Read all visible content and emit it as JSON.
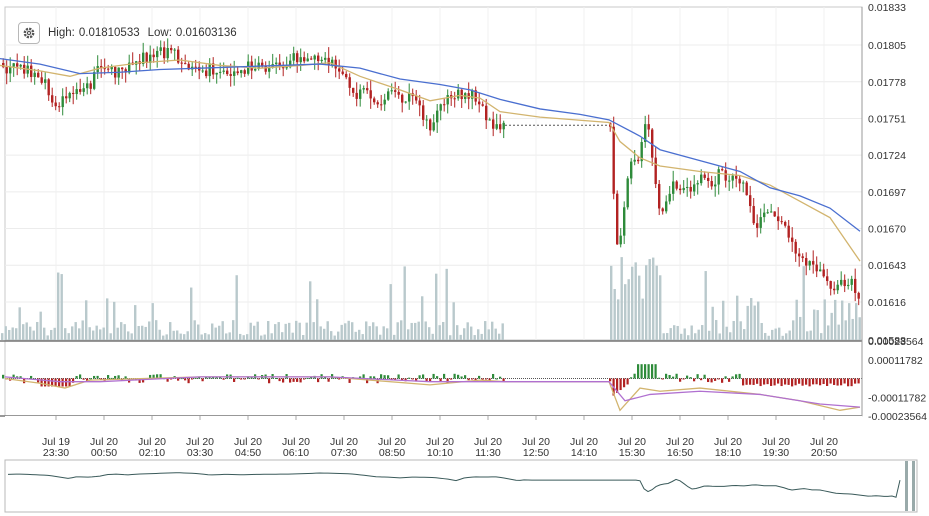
{
  "toolbar": {
    "settings_icon": "gear-icon",
    "high_label": "High:",
    "high_value": "0.01810533",
    "low_label": "Low:",
    "low_value": "0.01603136"
  },
  "colors": {
    "up": "#2e8b3a",
    "down": "#b22222",
    "ma_fast": "#d2b46e",
    "ma_slow": "#4a6fd0",
    "volume": "#b9c9cc",
    "macd_line": "#d2b46e",
    "signal_line": "#b070d0",
    "navigator": "#3a5a5a"
  },
  "chart_data": [
    {
      "type": "candlestick",
      "y_ticks": [
        "0.01833",
        "0.01805",
        "0.01778",
        "0.01751",
        "0.01724",
        "0.01697",
        "0.01670",
        "0.01643",
        "0.01616",
        "0.01588"
      ],
      "ylim": [
        0.01588,
        0.01833
      ],
      "x_ticks": [
        {
          "date": "Jul 19",
          "time": "23:30"
        },
        {
          "date": "Jul 20",
          "time": "00:50"
        },
        {
          "date": "Jul 20",
          "time": "02:10"
        },
        {
          "date": "Jul 20",
          "time": "03:30"
        },
        {
          "date": "Jul 20",
          "time": "04:50"
        },
        {
          "date": "Jul 20",
          "time": "06:10"
        },
        {
          "date": "Jul 20",
          "time": "07:30"
        },
        {
          "date": "Jul 20",
          "time": "08:50"
        },
        {
          "date": "Jul 20",
          "time": "10:10"
        },
        {
          "date": "Jul 20",
          "time": "11:30"
        },
        {
          "date": "Jul 20",
          "time": "12:50"
        },
        {
          "date": "Jul 20",
          "time": "14:10"
        },
        {
          "date": "Jul 20",
          "time": "15:30"
        },
        {
          "date": "Jul 20",
          "time": "16:50"
        },
        {
          "date": "Jul 20",
          "time": "18:10"
        },
        {
          "date": "Jul 20",
          "time": "19:30"
        },
        {
          "date": "Jul 20",
          "time": "20:50"
        }
      ],
      "price_path": [
        [
          0,
          0.01788
        ],
        [
          10,
          0.0179
        ],
        [
          25,
          0.01786
        ],
        [
          40,
          0.0178
        ],
        [
          50,
          0.01768
        ],
        [
          58,
          0.01758
        ],
        [
          66,
          0.0177
        ],
        [
          78,
          0.01768
        ],
        [
          88,
          0.01774
        ],
        [
          95,
          0.01786
        ],
        [
          105,
          0.0179
        ],
        [
          115,
          0.01784
        ],
        [
          125,
          0.0179
        ],
        [
          140,
          0.01794
        ],
        [
          155,
          0.01798
        ],
        [
          165,
          0.018
        ],
        [
          180,
          0.01795
        ],
        [
          195,
          0.01784
        ],
        [
          210,
          0.01788
        ],
        [
          225,
          0.01785
        ],
        [
          240,
          0.01788
        ],
        [
          255,
          0.01789
        ],
        [
          270,
          0.0179
        ],
        [
          285,
          0.01793
        ],
        [
          300,
          0.01798
        ],
        [
          315,
          0.01796
        ],
        [
          330,
          0.01792
        ],
        [
          345,
          0.0178
        ],
        [
          355,
          0.0177
        ],
        [
          365,
          0.01768
        ],
        [
          378,
          0.01762
        ],
        [
          390,
          0.01768
        ],
        [
          400,
          0.01767
        ],
        [
          412,
          0.01764
        ],
        [
          425,
          0.01752
        ],
        [
          432,
          0.01742
        ],
        [
          440,
          0.01762
        ],
        [
          450,
          0.0177
        ],
        [
          460,
          0.01768
        ],
        [
          470,
          0.0177
        ],
        [
          478,
          0.01762
        ],
        [
          485,
          0.01752
        ],
        [
          492,
          0.01742
        ],
        [
          498,
          0.01748
        ],
        [
          505,
          0.01746
        ],
        [
          609,
          0.01746
        ],
        [
          612,
          0.017
        ],
        [
          615,
          0.01656
        ],
        [
          620,
          0.0167
        ],
        [
          625,
          0.017
        ],
        [
          630,
          0.01715
        ],
        [
          636,
          0.0172
        ],
        [
          640,
          0.01734
        ],
        [
          645,
          0.01755
        ],
        [
          650,
          0.0173
        ],
        [
          655,
          0.017
        ],
        [
          660,
          0.01678
        ],
        [
          666,
          0.0169
        ],
        [
          672,
          0.01704
        ],
        [
          680,
          0.017
        ],
        [
          690,
          0.017
        ],
        [
          700,
          0.01707
        ],
        [
          710,
          0.01703
        ],
        [
          720,
          0.01712
        ],
        [
          730,
          0.01704
        ],
        [
          740,
          0.01705
        ],
        [
          748,
          0.0169
        ],
        [
          755,
          0.01672
        ],
        [
          762,
          0.0168
        ],
        [
          768,
          0.01684
        ],
        [
          775,
          0.01674
        ],
        [
          782,
          0.01675
        ],
        [
          790,
          0.01662
        ],
        [
          798,
          0.0165
        ],
        [
          806,
          0.01646
        ],
        [
          814,
          0.01643
        ],
        [
          822,
          0.01635
        ],
        [
          830,
          0.01628
        ],
        [
          838,
          0.01632
        ],
        [
          846,
          0.01625
        ],
        [
          852,
          0.0163
        ],
        [
          858,
          0.01616
        ]
      ],
      "moving_average_fast": [
        [
          0,
          0.0179
        ],
        [
          40,
          0.01786
        ],
        [
          70,
          0.01782
        ],
        [
          100,
          0.01788
        ],
        [
          140,
          0.01792
        ],
        [
          180,
          0.01794
        ],
        [
          220,
          0.0179
        ],
        [
          260,
          0.01788
        ],
        [
          300,
          0.0179
        ],
        [
          330,
          0.01792
        ],
        [
          360,
          0.01782
        ],
        [
          400,
          0.01772
        ],
        [
          430,
          0.01764
        ],
        [
          460,
          0.01768
        ],
        [
          480,
          0.01766
        ],
        [
          500,
          0.01756
        ],
        [
          540,
          0.01752
        ],
        [
          609,
          0.01748
        ],
        [
          620,
          0.01734
        ],
        [
          640,
          0.01722
        ],
        [
          660,
          0.01716
        ],
        [
          700,
          0.01712
        ],
        [
          740,
          0.01709
        ],
        [
          770,
          0.01702
        ],
        [
          800,
          0.0169
        ],
        [
          830,
          0.01678
        ],
        [
          860,
          0.01646
        ]
      ],
      "moving_average_slow": [
        [
          0,
          0.01795
        ],
        [
          40,
          0.01791
        ],
        [
          80,
          0.01784
        ],
        [
          120,
          0.01785
        ],
        [
          160,
          0.01787
        ],
        [
          200,
          0.01788
        ],
        [
          240,
          0.01789
        ],
        [
          280,
          0.0179
        ],
        [
          320,
          0.01791
        ],
        [
          360,
          0.01788
        ],
        [
          400,
          0.0178
        ],
        [
          440,
          0.01776
        ],
        [
          470,
          0.01772
        ],
        [
          500,
          0.01765
        ],
        [
          540,
          0.01758
        ],
        [
          580,
          0.01754
        ],
        [
          609,
          0.0175
        ],
        [
          640,
          0.01738
        ],
        [
          660,
          0.01728
        ],
        [
          700,
          0.0172
        ],
        [
          740,
          0.01712
        ],
        [
          770,
          0.017
        ],
        [
          800,
          0.01694
        ],
        [
          830,
          0.01685
        ],
        [
          860,
          0.01668
        ]
      ],
      "volume_window": [
        [
          0,
          505
        ],
        [
          609,
          860
        ]
      ]
    },
    {
      "type": "macd",
      "y_ticks": [
        "0.00023564",
        "0.00011782",
        "-0.00011782",
        "-0.00023564"
      ],
      "ylim": [
        -0.00023564,
        0.00023564
      ]
    }
  ]
}
